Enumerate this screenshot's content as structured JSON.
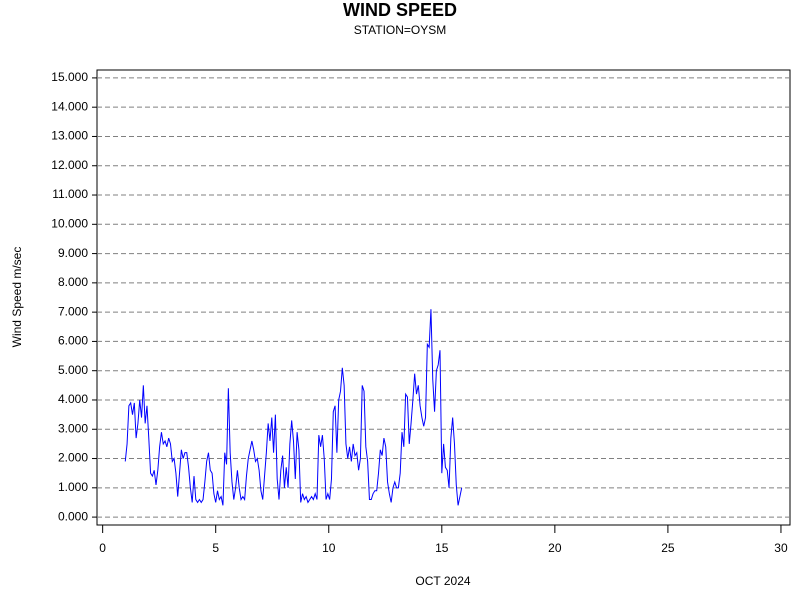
{
  "chart_data": {
    "type": "line",
    "title": "WIND SPEED",
    "subtitle": "STATION=OYSM",
    "xlabel": "OCT 2024",
    "ylabel": "Wind Speed m/sec",
    "color": "#0000ff",
    "grid": true,
    "xlim": [
      -0.25,
      30.4
    ],
    "ylim": [
      -0.27,
      15.27
    ],
    "xticks": [
      0,
      5,
      10,
      15,
      20,
      25,
      30
    ],
    "yticks": [
      {
        "value": 0,
        "label": "0.000"
      },
      {
        "value": 1,
        "label": "1.000"
      },
      {
        "value": 2,
        "label": "2.000"
      },
      {
        "value": 3,
        "label": "3.000"
      },
      {
        "value": 4,
        "label": "4.000"
      },
      {
        "value": 5,
        "label": "5.000"
      },
      {
        "value": 6,
        "label": "6.000"
      },
      {
        "value": 7,
        "label": "7.000"
      },
      {
        "value": 8,
        "label": "8.000"
      },
      {
        "value": 9,
        "label": "9.000"
      },
      {
        "value": 10,
        "label": "10.000"
      },
      {
        "value": 11,
        "label": "11.000"
      },
      {
        "value": 12,
        "label": "12.000"
      },
      {
        "value": 13,
        "label": "13.000"
      },
      {
        "value": 14,
        "label": "14.000"
      },
      {
        "value": 15,
        "label": "15.000"
      }
    ],
    "x": [
      1,
      1.08,
      1.16,
      1.24,
      1.32,
      1.4,
      1.48,
      1.56,
      1.64,
      1.72,
      1.8,
      1.88,
      1.96,
      2.04,
      2.12,
      2.2,
      2.28,
      2.36,
      2.44,
      2.52,
      2.6,
      2.68,
      2.76,
      2.84,
      2.92,
      3,
      3.08,
      3.16,
      3.24,
      3.32,
      3.4,
      3.48,
      3.56,
      3.64,
      3.72,
      3.8,
      3.88,
      3.96,
      4.04,
      4.12,
      4.2,
      4.28,
      4.36,
      4.44,
      4.52,
      4.6,
      4.68,
      4.76,
      4.84,
      4.92,
      5,
      5.08,
      5.16,
      5.24,
      5.32,
      5.4,
      5.48,
      5.56,
      5.64,
      5.72,
      5.8,
      5.88,
      5.96,
      6.04,
      6.12,
      6.2,
      6.28,
      6.36,
      6.44,
      6.52,
      6.6,
      6.68,
      6.76,
      6.84,
      6.92,
      7,
      7.08,
      7.16,
      7.24,
      7.32,
      7.4,
      7.48,
      7.56,
      7.64,
      7.72,
      7.8,
      7.88,
      7.96,
      8.04,
      8.12,
      8.2,
      8.28,
      8.36,
      8.44,
      8.52,
      8.6,
      8.68,
      8.76,
      8.84,
      8.92,
      9,
      9.08,
      9.16,
      9.24,
      9.32,
      9.4,
      9.48,
      9.56,
      9.64,
      9.72,
      9.8,
      9.88,
      9.96,
      10.04,
      10.12,
      10.2,
      10.28,
      10.36,
      10.44,
      10.52,
      10.6,
      10.68,
      10.76,
      10.84,
      10.92,
      11,
      11.08,
      11.16,
      11.24,
      11.32,
      11.4,
      11.48,
      11.56,
      11.64,
      11.72,
      11.8,
      11.88,
      11.96,
      12.04,
      12.12,
      12.2,
      12.28,
      12.36,
      12.44,
      12.52,
      12.6,
      12.68,
      12.76,
      12.84,
      12.92,
      13,
      13.08,
      13.16,
      13.24,
      13.32,
      13.4,
      13.48,
      13.56,
      13.64,
      13.72,
      13.8,
      13.88,
      13.96,
      14.04,
      14.12,
      14.2,
      14.28,
      14.36,
      14.44,
      14.52,
      14.6,
      14.68,
      14.76,
      14.84,
      14.92,
      15,
      15.08,
      15.16,
      15.24,
      15.32,
      15.4,
      15.48,
      15.56,
      15.64,
      15.72,
      15.8,
      15.88
    ],
    "values": [
      1.9,
      2.5,
      3.8,
      3.9,
      3.5,
      3.9,
      2.7,
      3.2,
      4.0,
      3.4,
      4.5,
      3.2,
      3.8,
      2.7,
      1.5,
      1.4,
      1.6,
      1.1,
      1.6,
      2.4,
      2.9,
      2.5,
      2.6,
      2.4,
      2.7,
      2.5,
      1.9,
      2.0,
      1.5,
      0.7,
      1.5,
      2.3,
      2.0,
      2.2,
      2.2,
      1.7,
      1.0,
      0.5,
      1.4,
      0.6,
      0.5,
      0.6,
      0.5,
      0.6,
      1.2,
      1.9,
      2.2,
      1.6,
      1.5,
      0.8,
      0.5,
      0.9,
      0.6,
      0.7,
      0.4,
      2.2,
      1.8,
      4.4,
      2.2,
      1.2,
      0.6,
      1.0,
      1.6,
      1.0,
      0.6,
      0.7,
      0.6,
      1.4,
      2.0,
      2.3,
      2.6,
      2.3,
      1.9,
      2.0,
      1.6,
      0.9,
      0.6,
      1.4,
      2.2,
      3.2,
      2.6,
      3.4,
      2.2,
      3.5,
      1.3,
      0.6,
      1.6,
      2.1,
      1.0,
      1.7,
      1.0,
      2.5,
      3.3,
      2.6,
      1.3,
      2.9,
      2.3,
      0.5,
      0.8,
      0.6,
      0.7,
      0.5,
      0.6,
      0.7,
      0.6,
      0.8,
      0.6,
      2.8,
      2.4,
      2.8,
      2.0,
      0.6,
      0.8,
      0.6,
      1.3,
      3.6,
      3.8,
      2.2,
      4.0,
      4.3,
      5.1,
      4.5,
      2.5,
      2.0,
      2.4,
      1.9,
      2.5,
      2.1,
      2.2,
      1.6,
      2.0,
      4.5,
      4.3,
      2.4,
      1.9,
      0.6,
      0.6,
      0.8,
      0.9,
      0.9,
      1.5,
      2.3,
      2.1,
      2.7,
      2.4,
      1.2,
      0.8,
      0.5,
      1.0,
      1.2,
      1.0,
      1.0,
      1.5,
      2.9,
      2.4,
      4.2,
      4.1,
      2.5,
      3.2,
      4.0,
      4.9,
      4.2,
      4.5,
      3.8,
      3.4,
      3.1,
      3.4,
      5.9,
      5.8,
      7.1,
      4.7,
      3.6,
      5.0,
      5.2,
      5.7,
      1.5,
      2.5,
      1.7,
      1.6,
      1.0,
      2.7,
      3.4,
      2.5,
      1.1,
      0.4,
      0.7,
      1.0
    ]
  }
}
